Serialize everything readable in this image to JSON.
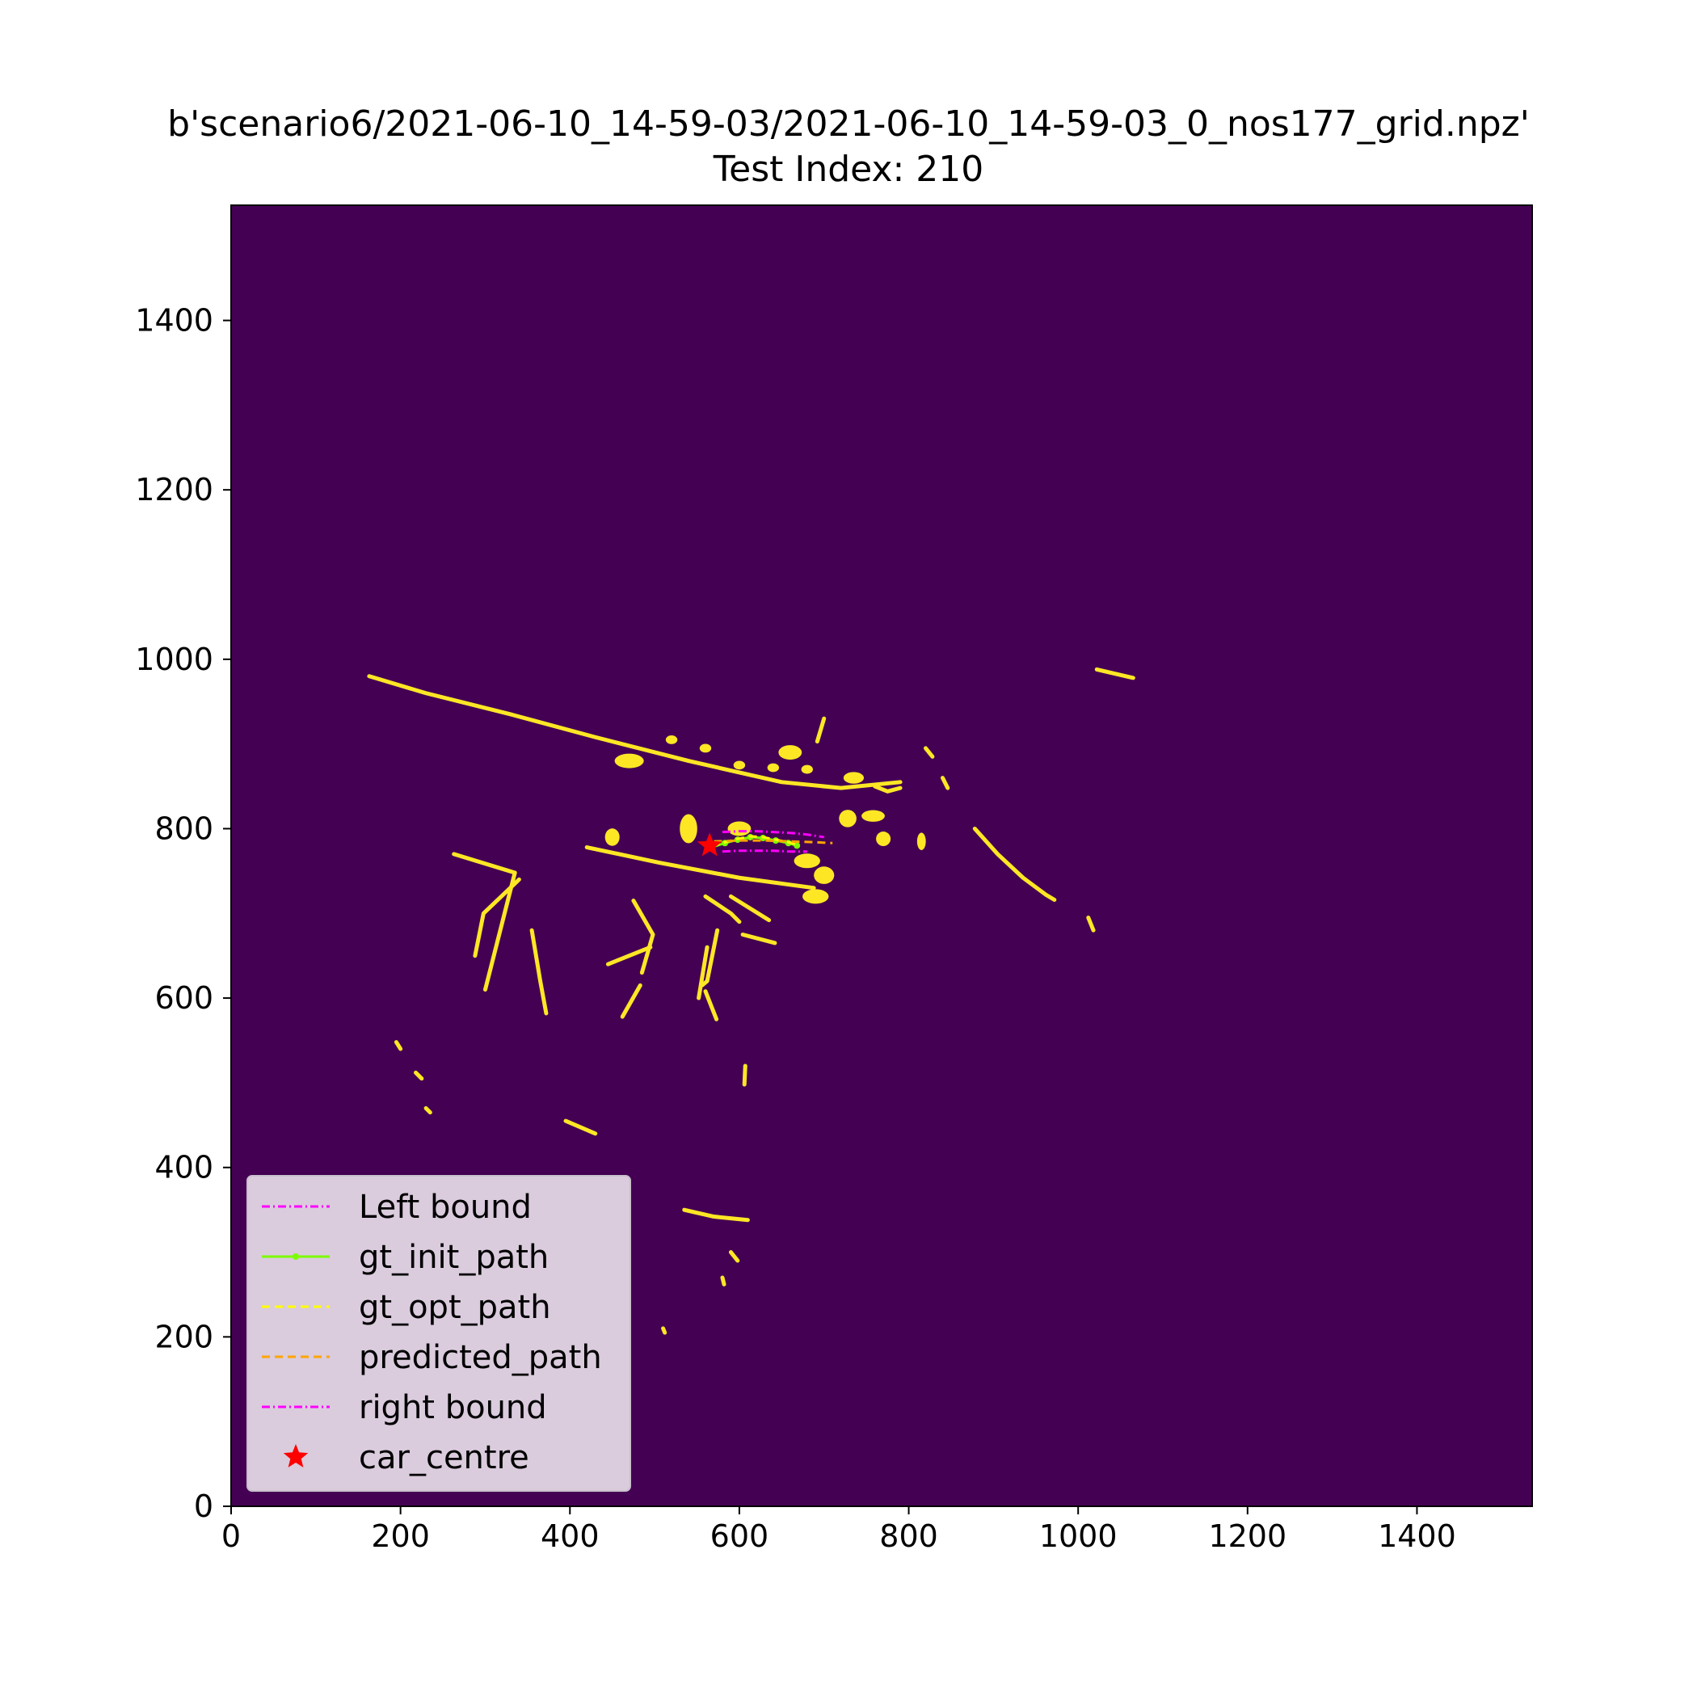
{
  "chart_data": {
    "type": "scatter",
    "title": "b'scenario6/2021-06-10_14-59-03/2021-06-10_14-59-03_0_nos177_grid.npz'",
    "subtitle": "Test Index: 210",
    "xlabel": "",
    "ylabel": "",
    "xlim": [
      0,
      1536
    ],
    "ylim": [
      0,
      1536
    ],
    "x_ticks": [
      0,
      200,
      400,
      600,
      800,
      1000,
      1200,
      1400
    ],
    "y_ticks": [
      0,
      200,
      400,
      600,
      800,
      1000,
      1200,
      1400
    ],
    "grid": false,
    "legend_position": "lower-left",
    "background_color": "#440154",
    "occupied_color": "#fde725",
    "occupancy_polylines": [
      [
        [
          163,
          980
        ],
        [
          230,
          960
        ],
        [
          330,
          935
        ],
        [
          430,
          908
        ],
        [
          540,
          880
        ],
        [
          650,
          855
        ],
        [
          720,
          848
        ],
        [
          790,
          855
        ]
      ],
      [
        [
          420,
          778
        ],
        [
          505,
          760
        ],
        [
          600,
          742
        ],
        [
          688,
          730
        ]
      ],
      [
        [
          263,
          770
        ],
        [
          335,
          748
        ]
      ],
      [
        [
          335,
          748
        ],
        [
          300,
          610
        ]
      ],
      [
        [
          340,
          740
        ],
        [
          298,
          700
        ],
        [
          288,
          650
        ]
      ],
      [
        [
          355,
          680
        ],
        [
          365,
          620
        ],
        [
          372,
          582
        ]
      ],
      [
        [
          475,
          715
        ],
        [
          498,
          675
        ],
        [
          485,
          630
        ]
      ],
      [
        [
          483,
          615
        ],
        [
          462,
          578
        ]
      ],
      [
        [
          445,
          640
        ],
        [
          495,
          660
        ]
      ],
      [
        [
          560,
          720
        ],
        [
          590,
          700
        ],
        [
          600,
          690
        ]
      ],
      [
        [
          562,
          660
        ],
        [
          552,
          600
        ]
      ],
      [
        [
          560,
          608
        ],
        [
          573,
          575
        ]
      ],
      [
        [
          590,
          720
        ],
        [
          635,
          692
        ]
      ],
      [
        [
          604,
          675
        ],
        [
          642,
          665
        ]
      ],
      [
        [
          574,
          680
        ],
        [
          562,
          620
        ],
        [
          556,
          615
        ]
      ],
      [
        [
          607,
          520
        ],
        [
          606,
          498
        ]
      ],
      [
        [
          395,
          455
        ],
        [
          430,
          440
        ]
      ],
      [
        [
          1022,
          988
        ],
        [
          1065,
          978
        ]
      ],
      [
        [
          878,
          800
        ],
        [
          905,
          770
        ],
        [
          935,
          742
        ],
        [
          962,
          722
        ],
        [
          972,
          716
        ]
      ],
      [
        [
          1012,
          695
        ],
        [
          1018,
          680
        ]
      ],
      [
        [
          820,
          895
        ],
        [
          828,
          885
        ]
      ],
      [
        [
          692,
          903
        ],
        [
          700,
          930
        ]
      ],
      [
        [
          840,
          860
        ],
        [
          846,
          848
        ]
      ],
      [
        [
          760,
          850
        ],
        [
          775,
          844
        ],
        [
          790,
          848
        ]
      ],
      [
        [
          535,
          350
        ],
        [
          570,
          342
        ],
        [
          610,
          338
        ]
      ],
      [
        [
          590,
          300
        ],
        [
          598,
          290
        ]
      ],
      [
        [
          510,
          210
        ],
        [
          512,
          205
        ]
      ],
      [
        [
          195,
          548
        ],
        [
          200,
          540
        ]
      ],
      [
        [
          218,
          512
        ],
        [
          225,
          505
        ]
      ],
      [
        [
          230,
          470
        ],
        [
          235,
          465
        ]
      ],
      [
        [
          580,
          270
        ],
        [
          582,
          262
        ]
      ]
    ],
    "occupancy_blobs": [
      [
        [
          470,
          880
        ],
        20,
        10
      ],
      [
        520,
        905
      ],
      [
        560,
        895
      ],
      [
        600,
        875
      ],
      [
        640,
        872
      ],
      [
        680,
        870
      ],
      [
        [
          540,
          800
        ],
        12,
        20
      ],
      [
        [
          450,
          790
        ],
        10,
        12
      ],
      [
        [
          600,
          800
        ],
        16,
        10
      ],
      [
        [
          680,
          762
        ],
        18,
        10
      ],
      [
        [
          700,
          745
        ],
        14,
        12
      ],
      [
        [
          690,
          720
        ],
        18,
        10
      ],
      [
        [
          728,
          812
        ],
        12,
        12
      ],
      [
        [
          758,
          815
        ],
        16,
        8
      ],
      [
        [
          770,
          788
        ],
        10,
        10
      ],
      [
        [
          735,
          860
        ],
        14,
        8
      ],
      [
        [
          815,
          785
        ],
        6,
        12
      ],
      [
        [
          660,
          890
        ],
        16,
        10
      ]
    ],
    "series": [
      {
        "name": "Left bound",
        "color": "#ff00ff",
        "style": "dashdot",
        "x": [
          580,
          600,
          620,
          640,
          660,
          680,
          700
        ],
        "y": [
          796,
          797,
          797,
          796,
          795,
          793,
          790
        ]
      },
      {
        "name": "gt_init_path",
        "color": "#7cfc00",
        "style": "solid-dot",
        "x": [
          567,
          583,
          598,
          613,
          628,
          643,
          658,
          668
        ],
        "y": [
          778,
          783,
          787,
          790,
          789,
          786,
          783,
          780
        ]
      },
      {
        "name": "gt_opt_path",
        "color": "#ffff00",
        "style": "dashed",
        "x": [
          567,
          583,
          598,
          613,
          628,
          643,
          658,
          668
        ],
        "y": [
          779,
          784,
          788,
          791,
          790,
          787,
          784,
          781
        ]
      },
      {
        "name": "predicted_path",
        "color": "#ffa500",
        "style": "dashed",
        "x": [
          570,
          600,
          630,
          660,
          690,
          710
        ],
        "y": [
          785,
          786,
          786,
          785,
          784,
          783
        ]
      },
      {
        "name": "right bound",
        "color": "#ff00ff",
        "style": "dashdot",
        "x": [
          580,
          600,
          620,
          640,
          660,
          680
        ],
        "y": [
          773,
          774,
          774,
          774,
          773,
          773
        ]
      },
      {
        "name": "car_centre",
        "color": "#ff0000",
        "style": "star",
        "x": [
          565
        ],
        "y": [
          780
        ]
      }
    ]
  }
}
